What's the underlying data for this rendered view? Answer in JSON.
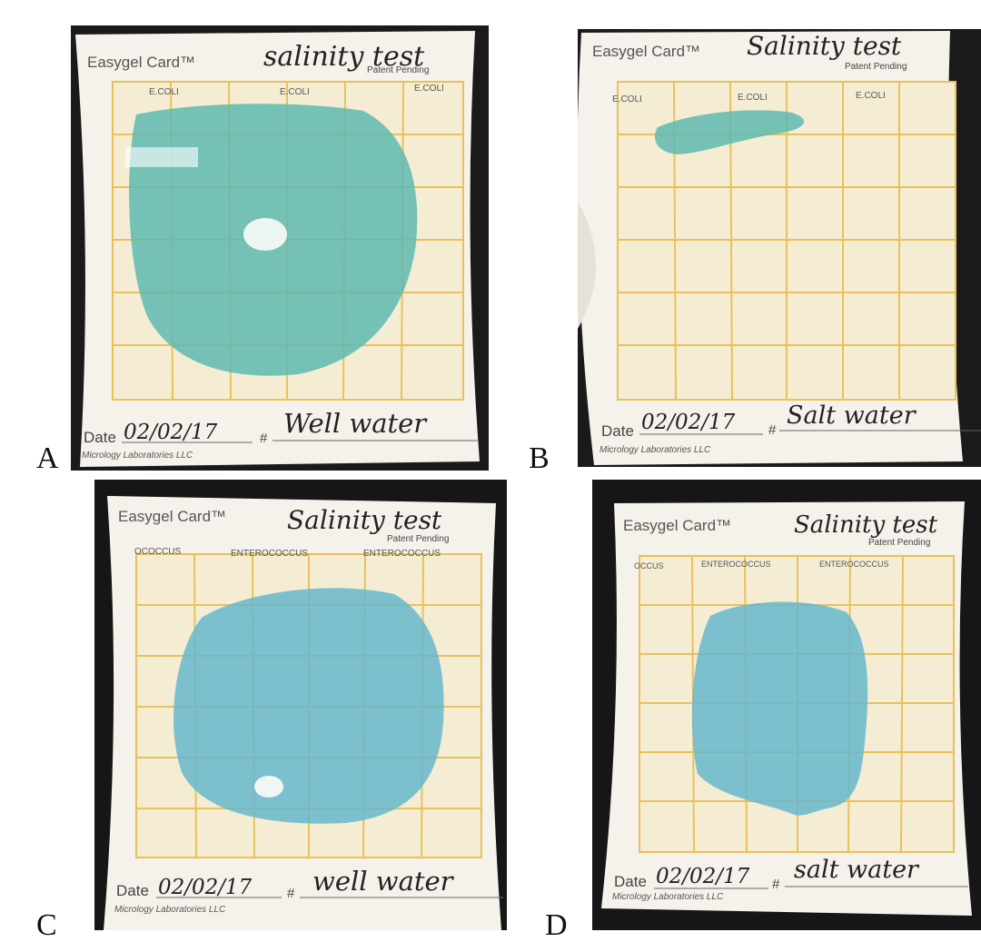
{
  "colors": {
    "background": "#ffffff",
    "card": "#f4f2ea",
    "grid": "#e8c15a",
    "grid_fill": "#f5edd3",
    "colony": "#5fb8b0",
    "colony_blue": "#66b7cc",
    "ink": "#222222"
  },
  "panels": [
    {
      "letter": "A",
      "brand": "Easygel Card™",
      "handwritten_title": "salinity test",
      "patent": "Patent Pending",
      "col_labels": [
        "E.COLI",
        "E.COLI",
        "E.COLI"
      ],
      "date_label": "Date",
      "date_value": "02/02/17",
      "hash": "#",
      "sample": "Well water",
      "company": "Micrology Laboratories LLC"
    },
    {
      "letter": "B",
      "brand": "Easygel Card™",
      "handwritten_title": "Salinity test",
      "patent": "Patent Pending",
      "col_labels": [
        "E.COLI",
        "E.COLI",
        "E.COLI"
      ],
      "date_label": "Date",
      "date_value": "02/02/17",
      "hash": "#",
      "sample": "Salt water",
      "company": "Micrology Laboratories LLC"
    },
    {
      "letter": "C",
      "brand": "Easygel Card™",
      "handwritten_title": "Salinity test",
      "patent": "Patent Pending",
      "col_labels": [
        "OCOCCUS",
        "ENTEROCOCCUS",
        "ENTEROCOCCUS"
      ],
      "date_label": "Date",
      "date_value": "02/02/17",
      "hash": "#",
      "sample": "well water",
      "company": "Micrology Laboratories LLC"
    },
    {
      "letter": "D",
      "brand": "Easygel Card™",
      "handwritten_title": "Salinity test",
      "patent": "Patent Pending",
      "col_labels": [
        "OCCUS",
        "ENTEROCOCCUS",
        "ENTEROCOCCUS"
      ],
      "date_label": "Date",
      "date_value": "02/02/17",
      "hash": "#",
      "sample": "salt water",
      "company": "Micrology Laboratories LLC"
    }
  ]
}
